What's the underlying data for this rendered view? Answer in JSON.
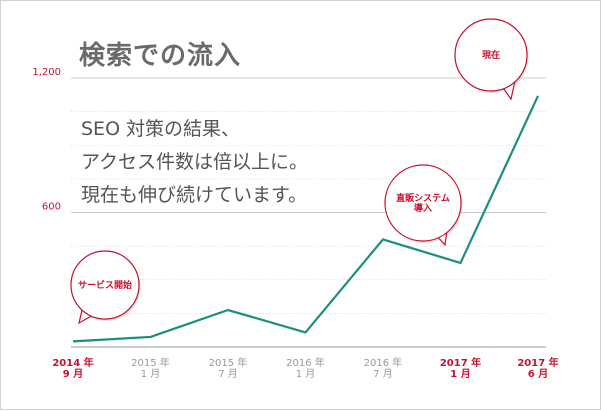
{
  "title": "検索での流入",
  "body_lines": [
    "SEO 対策の結果、",
    "アクセス件数は倍以上に。",
    "現在も伸び続けています。"
  ],
  "colors": {
    "line": "#1a8f80",
    "accent_red": "#c8102e",
    "muted_gray": "#999999",
    "grid": "#bbbbbb",
    "title": "#6a6a6a",
    "text": "#555555"
  },
  "chart_data": {
    "type": "line",
    "title": "検索での流入",
    "ylim": [
      0,
      1350
    ],
    "y_ticks": [
      {
        "value": 600,
        "label": "600"
      },
      {
        "value": 1200,
        "label": "1,200"
      }
    ],
    "categories": [
      {
        "line1": "2014 年",
        "line2": "9 月",
        "highlight": true
      },
      {
        "line1": "2015 年",
        "line2": "1 月",
        "highlight": false
      },
      {
        "line1": "2015 年",
        "line2": "7 月",
        "highlight": false
      },
      {
        "line1": "2016 年",
        "line2": "1 月",
        "highlight": false
      },
      {
        "line1": "2016 年",
        "line2": "7 月",
        "highlight": false
      },
      {
        "line1": "2017 年",
        "line2": "1 月",
        "highlight": true
      },
      {
        "line1": "2017 年",
        "line2": "6 月",
        "highlight": true
      }
    ],
    "series": [
      {
        "values": [
          25,
          45,
          165,
          65,
          480,
          375,
          1120
        ]
      }
    ],
    "annotations": [
      {
        "lines": [
          "サービス開始"
        ],
        "category_index": 0
      },
      {
        "lines": [
          "直販システム",
          "導入"
        ],
        "category_index": 5
      },
      {
        "lines": [
          "現在"
        ],
        "category_index": 6
      }
    ]
  }
}
